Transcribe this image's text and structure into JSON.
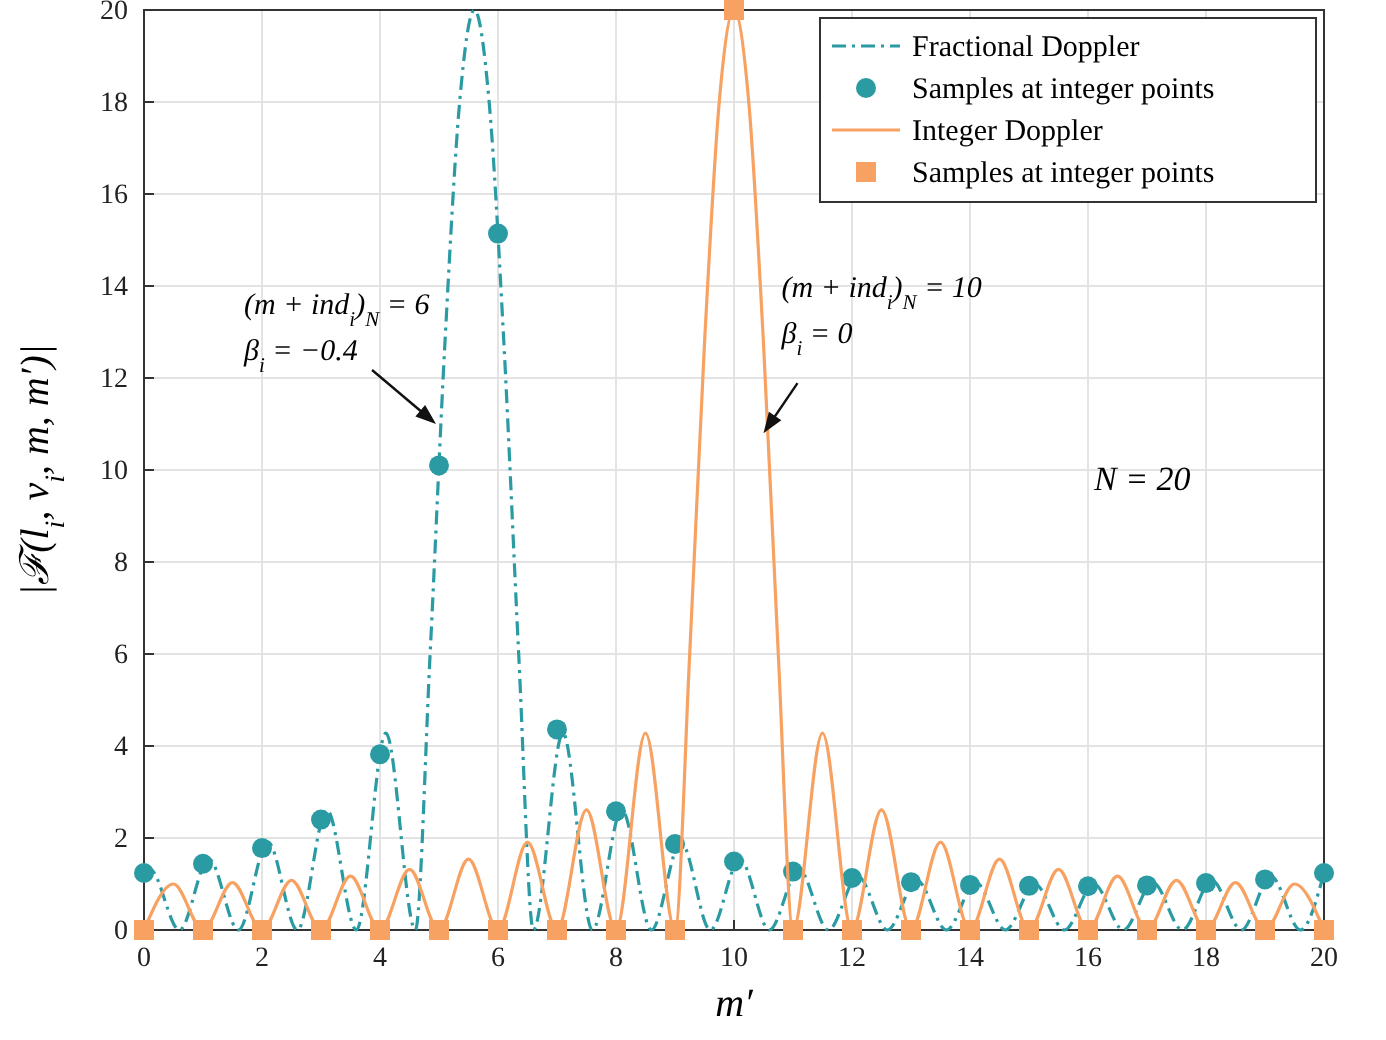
{
  "chart_data": {
    "type": "line",
    "xlabel": "m′",
    "ylabel": "|ℱ(l$_{i}$, ν$_{i}$, m, m′)|",
    "xlim": [
      0,
      20
    ],
    "ylim": [
      0,
      20
    ],
    "xticks": [
      0,
      2,
      4,
      6,
      8,
      10,
      12,
      14,
      16,
      18,
      20
    ],
    "yticks": [
      0,
      2,
      4,
      6,
      8,
      10,
      12,
      14,
      16,
      18,
      20
    ],
    "grid": true,
    "legend": "top right",
    "series": [
      {
        "name": "Fractional Doppler",
        "color": "#2a9aa3",
        "line_style": "dashed",
        "marker": "none",
        "x": [
          0,
          0.1,
          0.6,
          1.1,
          1.6,
          2.1,
          2.6,
          3.1,
          3.6,
          4.1,
          4.6,
          4.85,
          5.1,
          5.35,
          5.6,
          5.85,
          6.1,
          6.35,
          6.6,
          7.1,
          7.6,
          8.1,
          8.6,
          9.1,
          9.6,
          10.1,
          10.6,
          11.1,
          11.6,
          12.1,
          12.6,
          13.1,
          13.6,
          14.1,
          14.6,
          15.1,
          15.6,
          16.1,
          16.6,
          17.1,
          17.6,
          18.1,
          18.6,
          19.1,
          19.6,
          20
        ],
        "values": [
          1.24,
          1.32,
          0,
          1.54,
          0,
          1.91,
          0,
          2.61,
          0,
          4.28,
          0,
          6.02,
          12.75,
          18.0,
          20,
          18.0,
          12.75,
          6.02,
          0,
          4.28,
          0,
          2.61,
          0,
          1.91,
          0,
          1.54,
          0,
          1.32,
          0,
          1.17,
          0,
          1.08,
          0,
          1.03,
          0,
          1.0,
          0,
          1.0,
          0,
          1.03,
          0,
          1.08,
          0,
          1.17,
          0,
          1.24
        ]
      },
      {
        "name": "Samples at integer points",
        "type": "scatter",
        "color": "#2a9aa3",
        "marker": "circle",
        "x": [
          0,
          1,
          2,
          3,
          4,
          5,
          6,
          7,
          8,
          9,
          10,
          11,
          12,
          13,
          14,
          15,
          16,
          17,
          18,
          19,
          20
        ],
        "values": [
          1.24,
          1.44,
          1.78,
          2.4,
          3.82,
          10.1,
          15.14,
          4.36,
          2.58,
          1.87,
          1.49,
          1.27,
          1.13,
          1.04,
          0.98,
          0.96,
          0.95,
          0.97,
          1.02,
          1.1,
          1.24
        ]
      },
      {
        "name": "Integer Doppler",
        "color": "#f7a262",
        "line_style": "solid",
        "marker": "none",
        "x": [
          0,
          0.5,
          1,
          1.5,
          2,
          2.5,
          3,
          3.5,
          4,
          4.5,
          5,
          5.5,
          6,
          6.5,
          7,
          7.5,
          8,
          8.5,
          9,
          9.25,
          9.5,
          9.75,
          10,
          10.25,
          10.5,
          10.75,
          11,
          11.5,
          12,
          12.5,
          13,
          13.5,
          14,
          14.5,
          15,
          15.5,
          16,
          16.5,
          17,
          17.5,
          18,
          18.5,
          19,
          19.5,
          20
        ],
        "values": [
          0,
          1.0,
          0,
          1.03,
          0,
          1.08,
          0,
          1.17,
          0,
          1.32,
          0,
          1.54,
          0,
          1.91,
          0,
          2.61,
          0,
          4.28,
          0,
          6.02,
          12.75,
          18.0,
          20,
          18.0,
          12.75,
          6.02,
          0,
          4.28,
          0,
          2.61,
          0,
          1.91,
          0,
          1.54,
          0,
          1.32,
          0,
          1.17,
          0,
          1.08,
          0,
          1.03,
          0,
          1.0,
          0
        ]
      },
      {
        "name": "Samples at integer points",
        "type": "scatter",
        "color": "#f7a262",
        "marker": "square",
        "x": [
          0,
          1,
          2,
          3,
          4,
          5,
          6,
          7,
          8,
          9,
          10,
          11,
          12,
          13,
          14,
          15,
          16,
          17,
          18,
          19,
          20
        ],
        "values": [
          0,
          0,
          0,
          0,
          0,
          0,
          0,
          0,
          0,
          0,
          20,
          0,
          0,
          0,
          0,
          0,
          0,
          0,
          0,
          0,
          0
        ]
      }
    ],
    "annotations": [
      "(m + ind$_{i}$)$_{N}$ = 6",
      {
        "text": "β$_{i}$ = −0.4",
        "x": 4.95,
        "y": 11.0
      },
      "(m + ind$_{i}$)$_{N}$ = 10",
      {
        "text": "β$_{i}$ = 0",
        "x": 10.5,
        "y": 10.8
      },
      "N = 20"
    ]
  }
}
